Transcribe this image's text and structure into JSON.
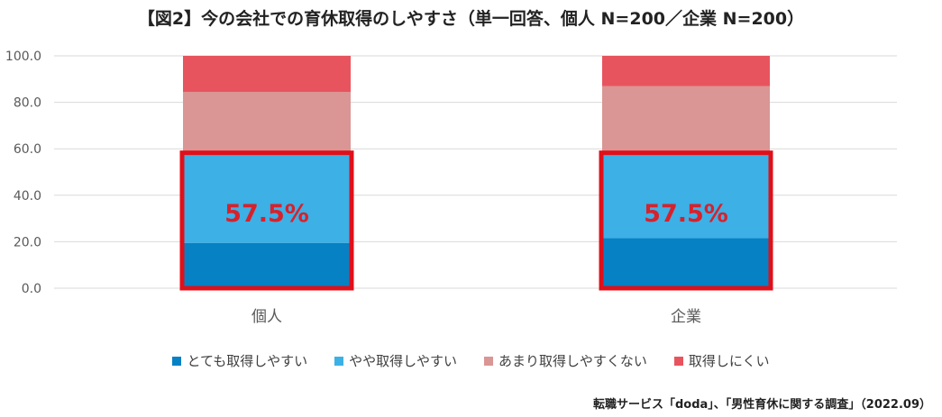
{
  "title": "【図2】今の会社での育休取得のしやすさ（単一回答、個人 N=200／企業 N=200）",
  "source": "転職サービス「doda」、「男性育休に関する調査」（2022.09）",
  "highlight_label": "57.5%",
  "colors": {
    "very_easy": "#0681C4",
    "somewhat_easy": "#3DB0E6",
    "not_very_easy": "#D99694",
    "hard": "#E8545E",
    "highlight_box": "#E0101A",
    "highlight_text": "#D8212B"
  },
  "chart_data": {
    "type": "bar",
    "stacked": true,
    "categories": [
      "個人",
      "企業"
    ],
    "series": [
      {
        "name": "とても取得しやすい",
        "values": [
          19.5,
          21.5
        ],
        "color_key": "very_easy"
      },
      {
        "name": "やや取得しやすい",
        "values": [
          38.0,
          36.0
        ],
        "color_key": "somewhat_easy"
      },
      {
        "name": "あまり取得しやすくない",
        "values": [
          27.0,
          29.5
        ],
        "color_key": "not_very_easy"
      },
      {
        "name": "取得しにくい",
        "values": [
          15.5,
          13.0
        ],
        "color_key": "hard"
      }
    ],
    "ylim": [
      0,
      100
    ],
    "yticks": [
      "0.0",
      "20.0",
      "40.0",
      "60.0",
      "80.0",
      "100.0"
    ],
    "grid": true,
    "legend_position": "bottom",
    "annotations": [
      "57.5%",
      "57.5%"
    ]
  }
}
